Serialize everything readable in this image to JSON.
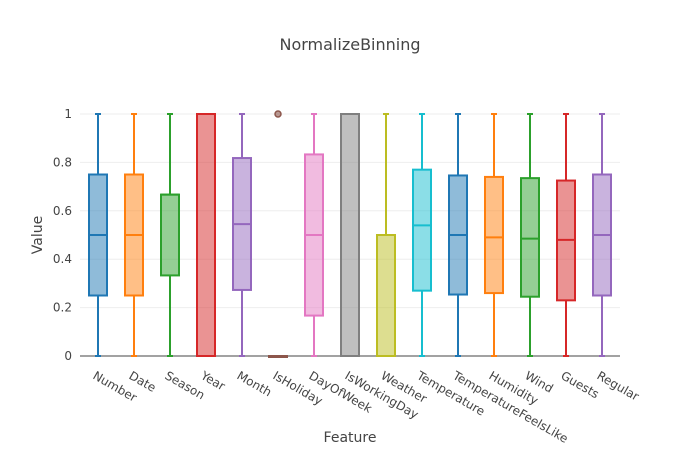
{
  "chart_data": {
    "type": "box",
    "title": "NormalizeBinning",
    "xlabel": "Feature",
    "ylabel": "Value",
    "ylim": [
      0,
      1
    ],
    "yticks": [
      0,
      0.2,
      0.4,
      0.6,
      0.8,
      1
    ],
    "ytick_labels": [
      "0",
      "0.2",
      "0.4",
      "0.6",
      "0.8",
      "1"
    ],
    "grid": true,
    "legend": "none",
    "series": [
      {
        "name": "Number",
        "color": "#1f77b4",
        "min": 0,
        "q1": 0.25,
        "median": 0.5,
        "q3": 0.75,
        "max": 1
      },
      {
        "name": "Date",
        "color": "#ff7f0e",
        "min": 0,
        "q1": 0.25,
        "median": 0.5,
        "q3": 0.75,
        "max": 1
      },
      {
        "name": "Season",
        "color": "#2ca02c",
        "min": 0,
        "q1": 0.333,
        "median": 0.667,
        "q3": 0.667,
        "max": 1
      },
      {
        "name": "Year",
        "color": "#d62728",
        "min": 0,
        "q1": 0,
        "median": 1,
        "q3": 1,
        "max": 1
      },
      {
        "name": "Month",
        "color": "#9467bd",
        "min": 0,
        "q1": 0.273,
        "median": 0.545,
        "q3": 0.818,
        "max": 1
      },
      {
        "name": "IsHoliday",
        "color": "#8c564b",
        "min": 0,
        "q1": 0,
        "median": 0,
        "q3": 0,
        "max": 0,
        "outliers": [
          1
        ]
      },
      {
        "name": "DayOfWeek",
        "color": "#e377c2",
        "min": 0,
        "q1": 0.167,
        "median": 0.5,
        "q3": 0.833,
        "max": 1
      },
      {
        "name": "IsWorkingDay",
        "color": "#7f7f7f",
        "min": 0,
        "q1": 0,
        "median": 1,
        "q3": 1,
        "max": 1
      },
      {
        "name": "Weather",
        "color": "#bcbd22",
        "min": 0,
        "q1": 0,
        "median": 0,
        "q3": 0.5,
        "max": 1
      },
      {
        "name": "Temperature",
        "color": "#17becf",
        "min": 0,
        "q1": 0.27,
        "median": 0.54,
        "q3": 0.77,
        "max": 1
      },
      {
        "name": "TemperatureFeelsLike",
        "color": "#1f77b4",
        "min": 0,
        "q1": 0.254,
        "median": 0.5,
        "q3": 0.746,
        "max": 1
      },
      {
        "name": "Humidity",
        "color": "#ff7f0e",
        "min": 0,
        "q1": 0.26,
        "median": 0.49,
        "q3": 0.74,
        "max": 1
      },
      {
        "name": "Wind",
        "color": "#2ca02c",
        "min": 0,
        "q1": 0.245,
        "median": 0.485,
        "q3": 0.735,
        "max": 1
      },
      {
        "name": "Guests",
        "color": "#d62728",
        "min": 0,
        "q1": 0.23,
        "median": 0.48,
        "q3": 0.725,
        "max": 1
      },
      {
        "name": "Regular",
        "color": "#9467bd",
        "min": 0,
        "q1": 0.25,
        "median": 0.5,
        "q3": 0.75,
        "max": 1
      }
    ]
  }
}
